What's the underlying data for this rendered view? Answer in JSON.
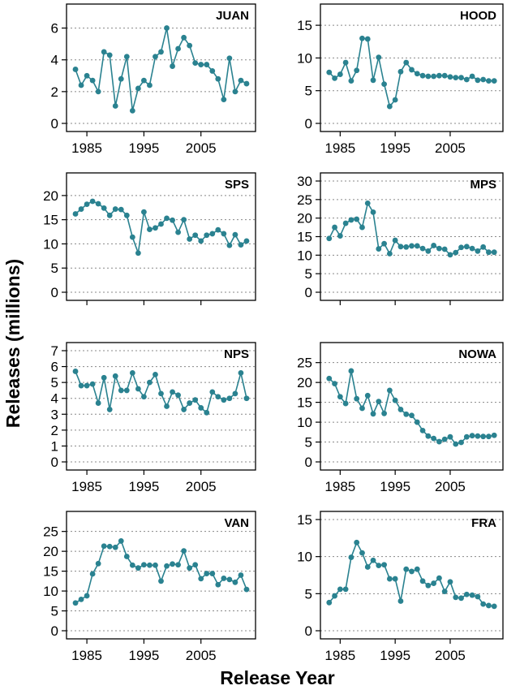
{
  "labels": {
    "ylabel": "Releases (millions)",
    "xlabel": "Release Year"
  },
  "colors": {
    "series": "#2a8290",
    "grid": "#888888"
  },
  "chart_data": [
    {
      "type": "line",
      "title": "JUAN",
      "ylim": [
        0,
        7
      ],
      "yticks": [
        0,
        2,
        4,
        6
      ],
      "xticks": [
        1985,
        1995,
        2005
      ],
      "show_xticklabels": true,
      "grid": true,
      "x": [
        1983,
        1984,
        1985,
        1986,
        1987,
        1988,
        1989,
        1990,
        1991,
        1992,
        1993,
        1994,
        1995,
        1996,
        1997,
        1998,
        1999,
        2000,
        2001,
        2002,
        2003,
        2004,
        2005,
        2006,
        2007,
        2008,
        2009,
        2010,
        2011,
        2012,
        2013
      ],
      "values": [
        3.4,
        2.4,
        3.0,
        2.7,
        2.0,
        4.5,
        4.3,
        1.1,
        2.8,
        4.2,
        0.8,
        2.2,
        2.7,
        2.4,
        4.2,
        4.5,
        6.0,
        3.6,
        4.7,
        5.4,
        4.9,
        3.8,
        3.7,
        3.7,
        3.3,
        2.8,
        1.5,
        4.1,
        2.0,
        2.7,
        2.5
      ]
    },
    {
      "type": "line",
      "title": "HOOD",
      "ylim": [
        0,
        17
      ],
      "yticks": [
        0,
        5,
        10,
        15
      ],
      "xticks": [
        1985,
        1995,
        2005
      ],
      "show_xticklabels": true,
      "grid": true,
      "x": [
        1983,
        1984,
        1985,
        1986,
        1987,
        1988,
        1989,
        1990,
        1991,
        1992,
        1993,
        1994,
        1995,
        1996,
        1997,
        1998,
        1999,
        2000,
        2001,
        2002,
        2003,
        2004,
        2005,
        2006,
        2007,
        2008,
        2009,
        2010,
        2011,
        2012,
        2013
      ],
      "values": [
        7.8,
        6.9,
        7.5,
        9.3,
        6.5,
        8.1,
        13.0,
        12.9,
        6.6,
        10.1,
        6.0,
        2.6,
        3.6,
        7.9,
        9.3,
        8.2,
        7.6,
        7.3,
        7.2,
        7.2,
        7.3,
        7.3,
        7.1,
        7.0,
        7.0,
        6.7,
        7.2,
        6.6,
        6.7,
        6.5,
        6.5
      ]
    },
    {
      "type": "line",
      "title": "SPS",
      "ylim": [
        0,
        23
      ],
      "yticks": [
        0,
        5,
        10,
        15,
        20
      ],
      "xticks": [
        1985,
        1995,
        2005
      ],
      "show_xticklabels": false,
      "grid": true,
      "x": [
        1983,
        1984,
        1985,
        1986,
        1987,
        1988,
        1989,
        1990,
        1991,
        1992,
        1993,
        1994,
        1995,
        1996,
        1997,
        1998,
        1999,
        2000,
        2001,
        2002,
        2003,
        2004,
        2005,
        2006,
        2007,
        2008,
        2009,
        2010,
        2011,
        2012,
        2013
      ],
      "values": [
        16.2,
        17.2,
        18.2,
        18.8,
        18.3,
        17.4,
        15.9,
        17.2,
        17.1,
        15.9,
        11.4,
        8.1,
        16.6,
        13.0,
        13.3,
        14.1,
        15.3,
        14.9,
        12.4,
        15.0,
        11.0,
        11.8,
        10.6,
        11.8,
        12.1,
        12.9,
        12.1,
        9.7,
        11.9,
        9.8,
        10.6
      ]
    },
    {
      "type": "line",
      "title": "MPS",
      "ylim": [
        0,
        30
      ],
      "yticks": [
        0,
        5,
        10,
        15,
        20,
        25,
        30
      ],
      "xticks": [
        1985,
        1995,
        2005
      ],
      "show_xticklabels": false,
      "grid": true,
      "x": [
        1983,
        1984,
        1985,
        1986,
        1987,
        1988,
        1989,
        1990,
        1991,
        1992,
        1993,
        1994,
        1995,
        1996,
        1997,
        1998,
        1999,
        2000,
        2001,
        2002,
        2003,
        2004,
        2005,
        2006,
        2007,
        2008,
        2009,
        2010,
        2011,
        2012,
        2013
      ],
      "values": [
        14.5,
        17.5,
        15.2,
        18.6,
        19.5,
        19.7,
        17.5,
        24.0,
        21.6,
        11.7,
        13.1,
        10.4,
        14.0,
        12.3,
        12.2,
        12.5,
        12.5,
        11.8,
        11.1,
        12.6,
        11.8,
        11.6,
        10.1,
        10.7,
        12.1,
        12.3,
        11.8,
        11.1,
        12.2,
        10.8,
        10.8
      ]
    },
    {
      "type": "line",
      "title": "NPS",
      "ylim": [
        0,
        7
      ],
      "yticks": [
        0,
        1,
        2,
        3,
        4,
        5,
        6,
        7
      ],
      "xticks": [
        1985,
        1995,
        2005
      ],
      "show_xticklabels": true,
      "grid": true,
      "x": [
        1983,
        1984,
        1985,
        1986,
        1987,
        1988,
        1989,
        1990,
        1991,
        1992,
        1993,
        1994,
        1995,
        1996,
        1997,
        1998,
        1999,
        2000,
        2001,
        2002,
        2003,
        2004,
        2005,
        2006,
        2007,
        2008,
        2009,
        2010,
        2011,
        2012,
        2013
      ],
      "values": [
        5.7,
        4.8,
        4.8,
        4.9,
        3.7,
        5.3,
        3.3,
        5.4,
        4.5,
        4.5,
        5.6,
        4.6,
        4.1,
        5.0,
        5.5,
        4.3,
        3.5,
        4.4,
        4.2,
        3.3,
        3.7,
        3.9,
        3.4,
        3.1,
        4.4,
        4.1,
        3.9,
        4.0,
        4.3,
        5.6,
        4.0
      ]
    },
    {
      "type": "line",
      "title": "NOWA",
      "ylim": [
        0,
        28
      ],
      "yticks": [
        0,
        5,
        10,
        15,
        20,
        25
      ],
      "xticks": [
        1985,
        1995,
        2005
      ],
      "show_xticklabels": true,
      "grid": true,
      "x": [
        1983,
        1984,
        1985,
        1986,
        1987,
        1988,
        1989,
        1990,
        1991,
        1992,
        1993,
        1994,
        1995,
        1996,
        1997,
        1998,
        1999,
        2000,
        2001,
        2002,
        2003,
        2004,
        2005,
        2006,
        2007,
        2008,
        2009,
        2010,
        2011,
        2012,
        2013
      ],
      "values": [
        21.0,
        19.7,
        16.4,
        14.7,
        22.9,
        15.9,
        13.5,
        16.7,
        12.1,
        15.2,
        12.2,
        18.0,
        15.5,
        13.2,
        12.0,
        11.7,
        10.0,
        7.9,
        6.5,
        5.9,
        5.1,
        5.7,
        6.3,
        4.5,
        4.9,
        6.3,
        6.6,
        6.5,
        6.4,
        6.4,
        6.7
      ]
    },
    {
      "type": "line",
      "title": "VAN",
      "ylim": [
        0,
        28
      ],
      "yticks": [
        0,
        5,
        10,
        15,
        20,
        25
      ],
      "xticks": [
        1985,
        1995,
        2005
      ],
      "show_xticklabels": true,
      "grid": true,
      "x": [
        1983,
        1984,
        1985,
        1986,
        1987,
        1988,
        1989,
        1990,
        1991,
        1992,
        1993,
        1994,
        1995,
        1996,
        1997,
        1998,
        1999,
        2000,
        2001,
        2002,
        2003,
        2004,
        2005,
        2006,
        2007,
        2008,
        2009,
        2010,
        2011,
        2012,
        2013
      ],
      "values": [
        7.0,
        7.9,
        8.8,
        14.3,
        16.9,
        21.3,
        21.2,
        21.0,
        22.6,
        18.7,
        16.5,
        15.8,
        16.6,
        16.5,
        16.5,
        12.5,
        16.3,
        16.8,
        16.6,
        20.1,
        15.8,
        16.6,
        13.1,
        14.4,
        14.4,
        11.6,
        13.2,
        12.9,
        12.2,
        14.0,
        10.4
      ]
    },
    {
      "type": "line",
      "title": "FRA",
      "ylim": [
        0,
        15
      ],
      "yticks": [
        0,
        5,
        10,
        15
      ],
      "xticks": [
        1985,
        1995,
        2005
      ],
      "show_xticklabels": true,
      "grid": true,
      "x": [
        1983,
        1984,
        1985,
        1986,
        1987,
        1988,
        1989,
        1990,
        1991,
        1992,
        1993,
        1994,
        1995,
        1996,
        1997,
        1998,
        1999,
        2000,
        2001,
        2002,
        2003,
        2004,
        2005,
        2006,
        2007,
        2008,
        2009,
        2010,
        2011,
        2012,
        2013
      ],
      "values": [
        3.8,
        4.7,
        5.6,
        5.6,
        9.9,
        11.9,
        10.5,
        8.6,
        9.5,
        8.8,
        8.9,
        7.0,
        7.0,
        4.0,
        8.3,
        8.0,
        8.3,
        6.7,
        6.1,
        6.4,
        7.1,
        5.3,
        6.6,
        4.5,
        4.4,
        4.9,
        4.8,
        4.6,
        3.6,
        3.4,
        3.3
      ]
    }
  ]
}
